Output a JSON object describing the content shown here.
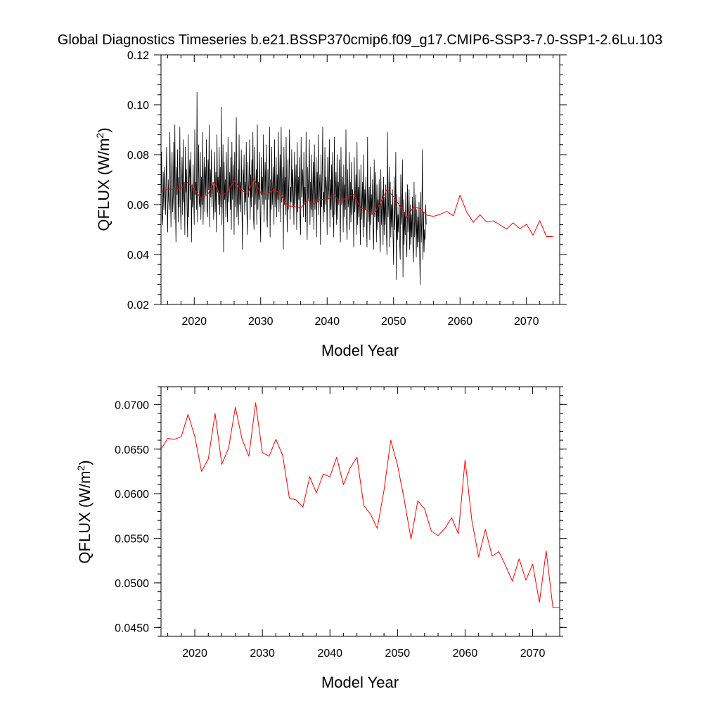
{
  "page": {
    "title": "Global Diagnostics Timeseries b.e21.BSSP370cmip6.f09_g17.CMIP6-SSP3-7.0-SSP1-2.6Lu.103"
  },
  "chart_data": [
    {
      "type": "line",
      "title": "Global Diagnostics Timeseries b.e21.BSSP370cmip6.f09_g17.CMIP6-SSP3-7.0-SSP1-2.6Lu.103",
      "xlabel": "Model Year",
      "ylabel": "QFLUX (W/m²)",
      "ylabel_base": "QFLUX (W/m",
      "ylabel_sup": "2",
      "ylabel_close": ")",
      "xlim": [
        2015,
        2075
      ],
      "ylim": [
        0.02,
        0.12
      ],
      "xticks": [
        2020,
        2030,
        2040,
        2050,
        2060,
        2070
      ],
      "yticks": [
        0.02,
        0.04,
        0.06,
        0.08,
        0.1,
        0.12
      ],
      "ytick_labels": [
        "0.02",
        "0.04",
        "0.06",
        "0.08",
        "0.10",
        "0.12"
      ],
      "grid": false,
      "series": [
        {
          "kind": "monthly",
          "color": "#000000",
          "x_start": 2015.0,
          "x_step": 0.0833333,
          "values": [
            0.06,
            0.081,
            0.055,
            0.052,
            0.073,
            0.058,
            0.069,
            0.075,
            0.056,
            0.066,
            0.083,
            0.061,
            0.049,
            0.07,
            0.062,
            0.058,
            0.089,
            0.066,
            0.051,
            0.072,
            0.081,
            0.057,
            0.063,
            0.085,
            0.054,
            0.092,
            0.06,
            0.045,
            0.075,
            0.064,
            0.082,
            0.053,
            0.071,
            0.059,
            0.091,
            0.062,
            0.05,
            0.067,
            0.079,
            0.056,
            0.086,
            0.061,
            0.069,
            0.048,
            0.083,
            0.065,
            0.074,
            0.058,
            0.047,
            0.088,
            0.055,
            0.071,
            0.078,
            0.062,
            0.081,
            0.045,
            0.068,
            0.059,
            0.076,
            0.063,
            0.052,
            0.09,
            0.064,
            0.069,
            0.058,
            0.105,
            0.053,
            0.067,
            0.084,
            0.061,
            0.059,
            0.081,
            0.054,
            0.071,
            0.06,
            0.089,
            0.052,
            0.068,
            0.079,
            0.057,
            0.075,
            0.064,
            0.086,
            0.058,
            0.055,
            0.078,
            0.066,
            0.092,
            0.051,
            0.074,
            0.063,
            0.082,
            0.059,
            0.067,
            0.069,
            0.054,
            0.063,
            0.081,
            0.057,
            0.073,
            0.049,
            0.088,
            0.065,
            0.071,
            0.06,
            0.083,
            0.056,
            0.075,
            0.059,
            0.099,
            0.052,
            0.067,
            0.084,
            0.041,
            0.077,
            0.062,
            0.07,
            0.055,
            0.081,
            0.064,
            0.053,
            0.087,
            0.061,
            0.066,
            0.073,
            0.058,
            0.079,
            0.05,
            0.085,
            0.062,
            0.068,
            0.076,
            0.048,
            0.081,
            0.059,
            0.071,
            0.095,
            0.055,
            0.063,
            0.074,
            0.052,
            0.088,
            0.06,
            0.069,
            0.057,
            0.082,
            0.062,
            0.042,
            0.074,
            0.066,
            0.08,
            0.056,
            0.069,
            0.061,
            0.085,
            0.058,
            0.048,
            0.077,
            0.063,
            0.068,
            0.086,
            0.054,
            0.072,
            0.059,
            0.078,
            0.063,
            0.089,
            0.055,
            0.05,
            0.083,
            0.06,
            0.067,
            0.074,
            0.052,
            0.092,
            0.058,
            0.069,
            0.062,
            0.081,
            0.057,
            0.045,
            0.079,
            0.064,
            0.071,
            0.06,
            0.088,
            0.053,
            0.066,
            0.077,
            0.062,
            0.084,
            0.056,
            0.051,
            0.074,
            0.062,
            0.069,
            0.091,
            0.047,
            0.07,
            0.058,
            0.083,
            0.06,
            0.067,
            0.075,
            0.052,
            0.086,
            0.059,
            0.065,
            0.079,
            0.055,
            0.072,
            0.062,
            0.089,
            0.057,
            0.068,
            0.08,
            0.053,
            0.091,
            0.061,
            0.066,
            0.075,
            0.042,
            0.083,
            0.06,
            0.071,
            0.056,
            0.087,
            0.063,
            0.049,
            0.078,
            0.058,
            0.07,
            0.09,
            0.054,
            0.067,
            0.061,
            0.082,
            0.059,
            0.074,
            0.065,
            0.052,
            0.081,
            0.06,
            0.068,
            0.076,
            0.05,
            0.085,
            0.057,
            0.071,
            0.062,
            0.079,
            0.056,
            0.048,
            0.087,
            0.063,
            0.069,
            0.074,
            0.055,
            0.081,
            0.06,
            0.067,
            0.053,
            0.089,
            0.061,
            0.046,
            0.075,
            0.062,
            0.072,
            0.086,
            0.052,
            0.069,
            0.058,
            0.08,
            0.055,
            0.066,
            0.077,
            0.05,
            0.084,
            0.058,
            0.064,
            0.079,
            0.047,
            0.073,
            0.061,
            0.088,
            0.056,
            0.067,
            0.072,
            0.044,
            0.08,
            0.059,
            0.069,
            0.091,
            0.053,
            0.065,
            0.057,
            0.083,
            0.06,
            0.071,
            0.066,
            0.048,
            0.079,
            0.062,
            0.067,
            0.086,
            0.051,
            0.07,
            0.058,
            0.076,
            0.055,
            0.081,
            0.06,
            0.047,
            0.087,
            0.056,
            0.066,
            0.073,
            0.052,
            0.08,
            0.054,
            0.069,
            0.06,
            0.078,
            0.057,
            0.045,
            0.083,
            0.06,
            0.064,
            0.071,
            0.049,
            0.076,
            0.055,
            0.068,
            0.058,
            0.09,
            0.054,
            0.046,
            0.074,
            0.059,
            0.062,
            0.081,
            0.05,
            0.069,
            0.053,
            0.077,
            0.056,
            0.066,
            0.061,
            0.043,
            0.079,
            0.057,
            0.063,
            0.072,
            0.048,
            0.085,
            0.052,
            0.067,
            0.055,
            0.074,
            0.058,
            0.044,
            0.076,
            0.054,
            0.061,
            0.069,
            0.047,
            0.08,
            0.051,
            0.066,
            0.058,
            0.071,
            0.053,
            0.043,
            0.087,
            0.053,
            0.06,
            0.067,
            0.046,
            0.075,
            0.052,
            0.064,
            0.056,
            0.07,
            0.051,
            0.042,
            0.078,
            0.055,
            0.06,
            0.073,
            0.045,
            0.068,
            0.05,
            0.062,
            0.053,
            0.07,
            0.049,
            0.041,
            0.074,
            0.052,
            0.059,
            0.066,
            0.044,
            0.071,
            0.048,
            0.063,
            0.052,
            0.068,
            0.05,
            0.04,
            0.089,
            0.055,
            0.061,
            0.075,
            0.043,
            0.069,
            0.047,
            0.06,
            0.051,
            0.066,
            0.048,
            0.036,
            0.071,
            0.05,
            0.058,
            0.081,
            0.03,
            0.064,
            0.046,
            0.056,
            0.049,
            0.063,
            0.045,
            0.038,
            0.072,
            0.052,
            0.056,
            0.078,
            0.031,
            0.062,
            0.044,
            0.057,
            0.048,
            0.065,
            0.046,
            0.039,
            0.068,
            0.049,
            0.055,
            0.066,
            0.042,
            0.06,
            0.044,
            0.056,
            0.047,
            0.063,
            0.043,
            0.037,
            0.069,
            0.047,
            0.054,
            0.064,
            0.039,
            0.058,
            0.043,
            0.055,
            0.045,
            0.061,
            0.042,
            0.028,
            0.065,
            0.045,
            0.053,
            0.082,
            0.038,
            0.057,
            0.041,
            0.05,
            0.046,
            0.06,
            0.052
          ]
        },
        {
          "kind": "annual",
          "color": "#ff0000",
          "x": [
            2015,
            2016,
            2017,
            2018,
            2019,
            2020,
            2021,
            2022,
            2023,
            2024,
            2025,
            2026,
            2027,
            2028,
            2029,
            2030,
            2031,
            2032,
            2033,
            2034,
            2035,
            2036,
            2037,
            2038,
            2039,
            2040,
            2041,
            2042,
            2043,
            2044,
            2045,
            2046,
            2047,
            2048,
            2049,
            2050,
            2051,
            2052,
            2053,
            2054,
            2055,
            2056,
            2057,
            2058,
            2059,
            2060,
            2061,
            2062,
            2063,
            2064,
            2065,
            2066,
            2067,
            2068,
            2069,
            2070,
            2071,
            2072,
            2073,
            2074
          ],
          "values": [
            0.065,
            0.0662,
            0.0661,
            0.0664,
            0.0689,
            0.0664,
            0.0625,
            0.0639,
            0.069,
            0.0633,
            0.0651,
            0.0697,
            0.0661,
            0.0642,
            0.0702,
            0.0646,
            0.0642,
            0.0661,
            0.0643,
            0.0595,
            0.0593,
            0.0585,
            0.0619,
            0.0601,
            0.0622,
            0.0619,
            0.0641,
            0.061,
            0.0629,
            0.0641,
            0.0587,
            0.0577,
            0.0561,
            0.0604,
            0.066,
            0.0632,
            0.0593,
            0.0549,
            0.0592,
            0.0583,
            0.0558,
            0.0553,
            0.0561,
            0.0573,
            0.0555,
            0.0638,
            0.057,
            0.0529,
            0.056,
            0.053,
            0.0535,
            0.0519,
            0.0502,
            0.0527,
            0.0503,
            0.0521,
            0.0478,
            0.0536,
            0.0472,
            0.0472
          ]
        }
      ]
    },
    {
      "type": "line",
      "xlabel": "Model Year",
      "ylabel": "QFLUX (W/m²)",
      "ylabel_base": "QFLUX (W/m",
      "ylabel_sup": "2",
      "ylabel_close": ")",
      "xlim": [
        2015,
        2074
      ],
      "ylim": [
        0.044,
        0.072
      ],
      "xticks": [
        2020,
        2030,
        2040,
        2050,
        2060,
        2070
      ],
      "yticks": [
        0.045,
        0.05,
        0.055,
        0.06,
        0.065,
        0.07
      ],
      "ytick_labels": [
        "0.0450",
        "0.0500",
        "0.0550",
        "0.0600",
        "0.0650",
        "0.0700"
      ],
      "grid": false,
      "series": [
        {
          "kind": "annual",
          "color": "#ff0000",
          "x": [
            2015,
            2016,
            2017,
            2018,
            2019,
            2020,
            2021,
            2022,
            2023,
            2024,
            2025,
            2026,
            2027,
            2028,
            2029,
            2030,
            2031,
            2032,
            2033,
            2034,
            2035,
            2036,
            2037,
            2038,
            2039,
            2040,
            2041,
            2042,
            2043,
            2044,
            2045,
            2046,
            2047,
            2048,
            2049,
            2050,
            2051,
            2052,
            2053,
            2054,
            2055,
            2056,
            2057,
            2058,
            2059,
            2060,
            2061,
            2062,
            2063,
            2064,
            2065,
            2066,
            2067,
            2068,
            2069,
            2070,
            2071,
            2072,
            2073,
            2074
          ],
          "values": [
            0.065,
            0.0662,
            0.0661,
            0.0664,
            0.0689,
            0.0664,
            0.0625,
            0.0639,
            0.069,
            0.0633,
            0.0651,
            0.0697,
            0.0661,
            0.0642,
            0.0702,
            0.0646,
            0.0642,
            0.0661,
            0.0643,
            0.0595,
            0.0593,
            0.0585,
            0.0619,
            0.0601,
            0.0622,
            0.0619,
            0.0641,
            0.061,
            0.0629,
            0.0641,
            0.0587,
            0.0577,
            0.0561,
            0.0604,
            0.066,
            0.0632,
            0.0593,
            0.0549,
            0.0592,
            0.0583,
            0.0558,
            0.0553,
            0.0561,
            0.0573,
            0.0555,
            0.0638,
            0.057,
            0.0529,
            0.056,
            0.053,
            0.0535,
            0.0519,
            0.0502,
            0.0527,
            0.0503,
            0.0521,
            0.0478,
            0.0536,
            0.0472,
            0.0472
          ]
        }
      ]
    }
  ]
}
